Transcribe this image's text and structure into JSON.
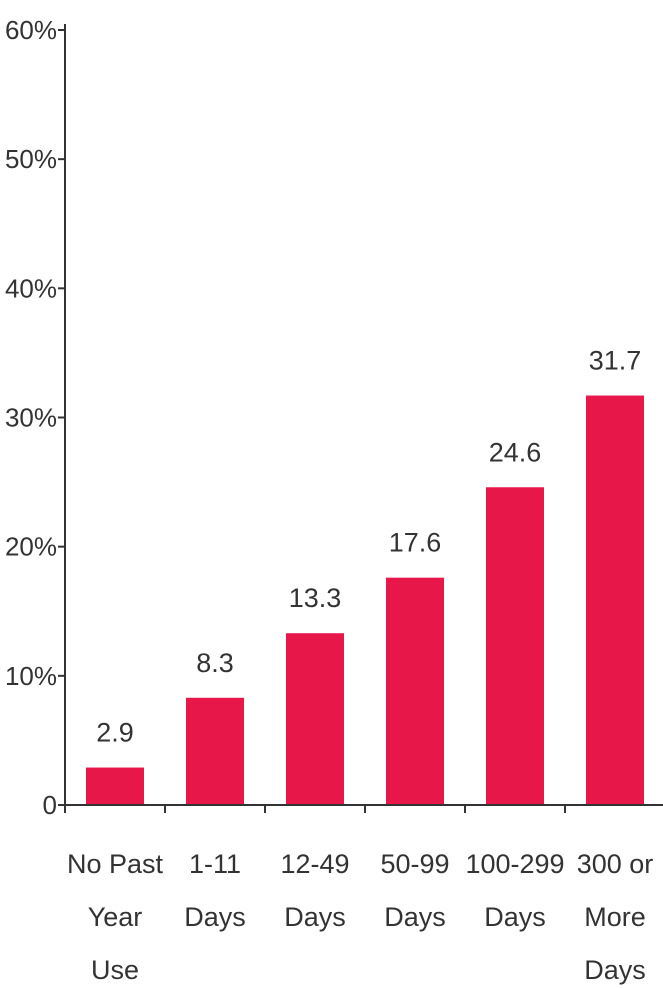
{
  "chart_data": {
    "type": "bar",
    "categories": [
      [
        "No Past",
        "Year",
        "Use"
      ],
      [
        "1-11",
        "Days"
      ],
      [
        "12-49",
        "Days"
      ],
      [
        "50-99",
        "Days"
      ],
      [
        "100-299",
        "Days"
      ],
      [
        "300 or",
        "More",
        "Days"
      ]
    ],
    "values": [
      2.9,
      8.3,
      13.3,
      17.6,
      24.6,
      31.7
    ],
    "data_labels": [
      "2.9",
      "8.3",
      "13.3",
      "17.6",
      "24.6",
      "31.7"
    ],
    "ylim": [
      0,
      60
    ],
    "yticks": [
      0,
      10,
      20,
      30,
      40,
      50,
      60
    ],
    "ytick_labels": [
      "0",
      "10%",
      "20%",
      "30%",
      "40%",
      "50%",
      "60%"
    ],
    "title": "",
    "xlabel": "",
    "ylabel": "",
    "grid": false,
    "bar_color": "#e8174a",
    "axis_color": "#333333"
  }
}
